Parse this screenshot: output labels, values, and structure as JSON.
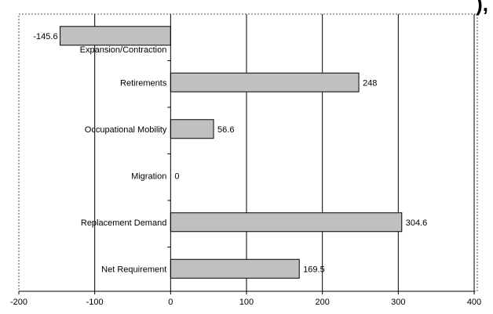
{
  "chart_data": {
    "type": "bar",
    "orientation": "horizontal",
    "title_fragment": "), ",
    "title_suffix": "(",
    "categories": [
      "Expansion/Contraction",
      "Retirements",
      "Occupational Mobility",
      "Migration",
      "Replacement Demand",
      "Net Requirement"
    ],
    "values": [
      -145.6,
      248,
      56.6,
      0,
      304.6,
      169.5
    ],
    "value_labels": [
      "-145.6",
      "248",
      "56.6",
      "0",
      "304.6",
      "169.5"
    ],
    "x_ticks": [
      -200,
      -100,
      0,
      100,
      200,
      300,
      400
    ],
    "x_tick_labels": [
      "-200",
      "-100",
      "0",
      "100",
      "200",
      "300",
      "400"
    ],
    "xlim": [
      -200,
      400
    ],
    "grid": "vertical",
    "bar_color": "#c0c0c0",
    "bar_stroke": "#000000"
  }
}
